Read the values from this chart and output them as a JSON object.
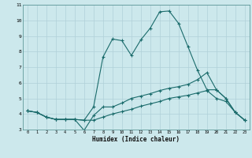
{
  "xlabel": "Humidex (Indice chaleur)",
  "bg_color": "#cce8ec",
  "grid_color": "#b0d0d8",
  "line_color": "#1a6b6b",
  "xlim": [
    -0.5,
    23.5
  ],
  "ylim": [
    3,
    11
  ],
  "xticks": [
    0,
    1,
    2,
    3,
    4,
    5,
    6,
    7,
    8,
    9,
    10,
    11,
    12,
    13,
    14,
    15,
    16,
    17,
    18,
    19,
    20,
    21,
    22,
    23
  ],
  "yticks": [
    3,
    4,
    5,
    6,
    7,
    8,
    9,
    10,
    11
  ],
  "line1_y": [
    4.2,
    4.1,
    3.8,
    3.65,
    3.65,
    3.65,
    3.6,
    4.45,
    7.65,
    8.8,
    8.7,
    7.75,
    8.75,
    9.5,
    10.55,
    10.6,
    9.8,
    8.3,
    6.8,
    5.55,
    5.55,
    5.0,
    4.1,
    3.6
  ],
  "line2_y": [
    4.2,
    4.1,
    3.8,
    3.65,
    3.65,
    3.65,
    2.95,
    3.9,
    4.45,
    4.45,
    4.7,
    5.0,
    5.15,
    5.3,
    5.5,
    5.65,
    5.75,
    5.9,
    6.2,
    6.65,
    5.55,
    5.0,
    4.1,
    3.6
  ],
  "line3_y": [
    4.2,
    4.1,
    3.8,
    3.65,
    3.65,
    3.65,
    3.6,
    3.6,
    3.8,
    4.0,
    4.15,
    4.3,
    4.5,
    4.65,
    4.8,
    5.0,
    5.1,
    5.2,
    5.35,
    5.5,
    5.0,
    4.8,
    4.1,
    3.6
  ]
}
